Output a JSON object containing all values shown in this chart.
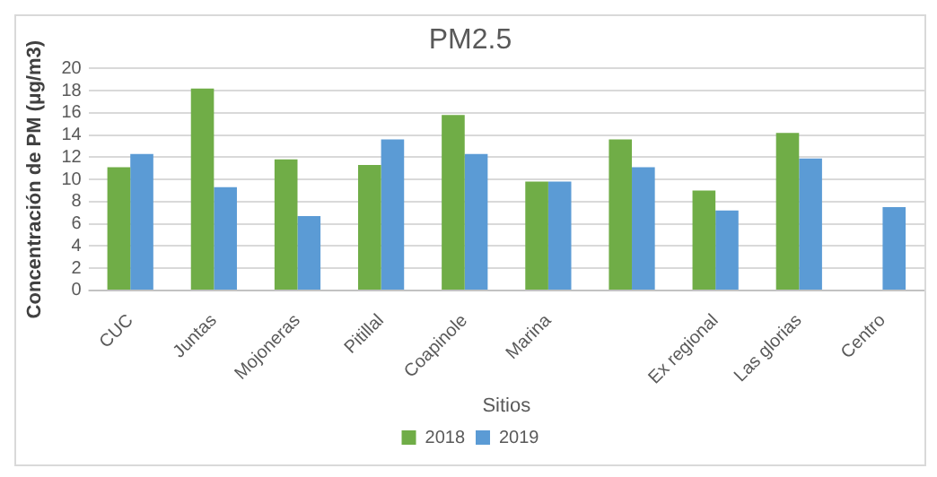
{
  "chart_data": {
    "type": "bar",
    "title": "PM2.5",
    "xlabel": "Sitios",
    "ylabel": "Concentración de PM (μg/m3)",
    "categories": [
      "CUC",
      "Juntas",
      "Mojoneras",
      "Pitillal",
      "Coapinole",
      "Marina",
      null,
      "Ex regional",
      "Las glorias",
      "Centro"
    ],
    "series": [
      {
        "name": "2018",
        "color": "#70ad47",
        "values": [
          11.1,
          18.2,
          11.8,
          11.3,
          15.8,
          9.8,
          13.6,
          9.0,
          14.2,
          null
        ]
      },
      {
        "name": "2019",
        "color": "#5b9bd5",
        "values": [
          12.3,
          9.3,
          6.7,
          13.6,
          12.3,
          9.8,
          11.1,
          7.2,
          11.9,
          7.5
        ]
      }
    ],
    "ylim": [
      0,
      20
    ],
    "yticks": [
      0,
      2,
      4,
      6,
      8,
      10,
      12,
      14,
      16,
      18,
      20
    ],
    "grid": "y",
    "legend": "bottom"
  }
}
